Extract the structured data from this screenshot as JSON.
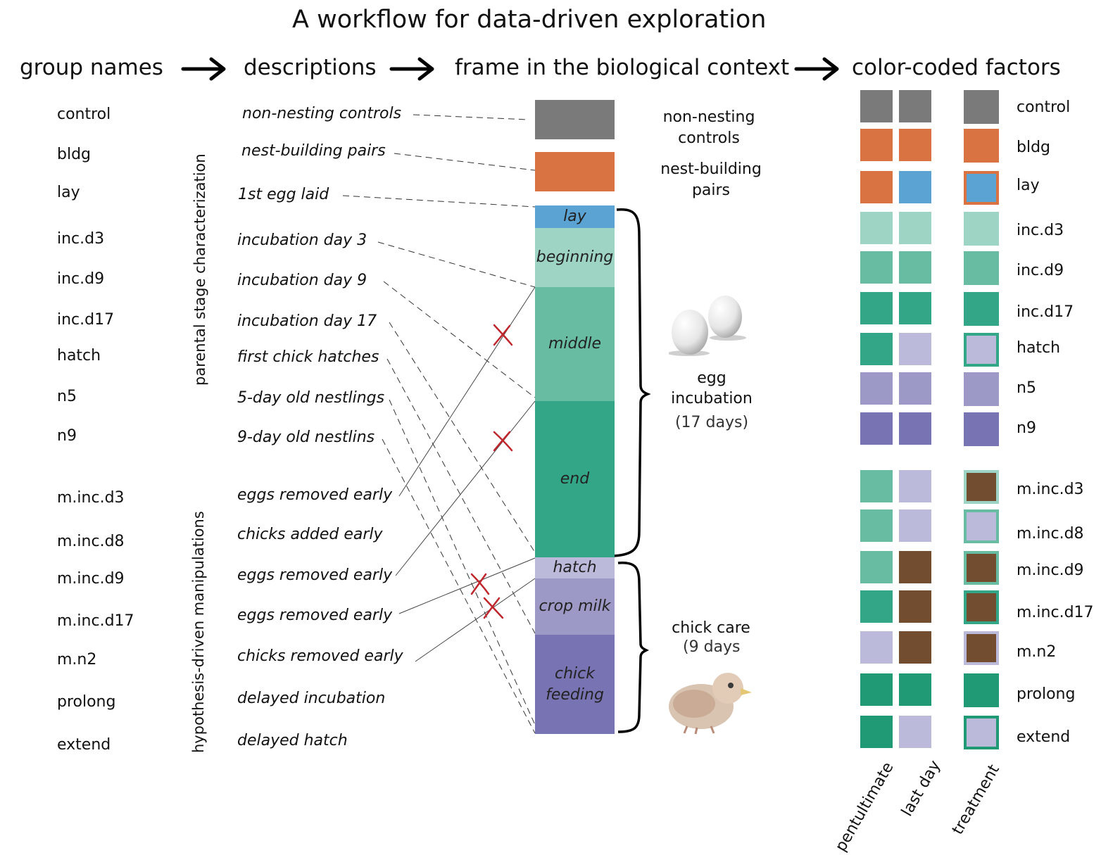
{
  "title": "A workflow for data-driven exploration",
  "headers": {
    "group_names": "group names",
    "descriptions": "descriptions",
    "frame": "frame in the biological context",
    "factors": "color-coded factors"
  },
  "groups": [
    "control",
    "bldg",
    "lay",
    "inc.d3",
    "inc.d9",
    "inc.d17",
    "hatch",
    "n5",
    "n9",
    "m.inc.d3",
    "m.inc.d8",
    "m.inc.d9",
    "m.inc.d17",
    "m.n2",
    "prolong",
    "extend"
  ],
  "descriptions": [
    "non-nesting controls",
    "nest-building pairs",
    "1st egg laid",
    "incubation day 3",
    "incubation  day 9",
    "incubation  day 17",
    "first chick hatches",
    "5-day old nestlings",
    "9-day old nestlins",
    "eggs removed early",
    "chicks added early",
    "eggs removed early",
    "eggs removed early",
    "chicks removed early",
    "delayed incubation",
    "delayed hatch"
  ],
  "vertical_labels": {
    "characterization": "parental stage characterization",
    "manipulations": "hypothesis-driven manipulations"
  },
  "stages": [
    "lay",
    "beginning",
    "middle",
    "end",
    "hatch",
    "crop milk",
    "chick feeding"
  ],
  "context": {
    "controls": "non-nesting controls",
    "building": "nest-building pairs",
    "incubation_1": "egg",
    "incubation_2": "incubation",
    "incubation_3": "(17 days)",
    "chick_care_1": "chick care",
    "chick_care_2": "(9 days"
  },
  "colors": {
    "control": "#7a7a7a",
    "bldg": "#d97442",
    "lay": "#5ba3d2",
    "inc_d3": "#9dd4c4",
    "inc_d9": "#67bca2",
    "inc_d17": "#33a688",
    "hatch": "#bcbadb",
    "n5": "#9d99c6",
    "n9": "#7873b2",
    "manip": "#734d2f",
    "prolong": "#1f9a74"
  },
  "factor_labels": [
    "control",
    "bldg",
    "lay",
    "inc.d3",
    "inc.d9",
    "inc.d17",
    "hatch",
    "n5",
    "n9",
    "m.inc.d3",
    "m.inc.d8",
    "m.inc.d9",
    "m.inc.d17",
    "m.n2",
    "prolong",
    "extend"
  ],
  "axis_labels": [
    "pentultimate",
    "last  day",
    "treatment"
  ]
}
